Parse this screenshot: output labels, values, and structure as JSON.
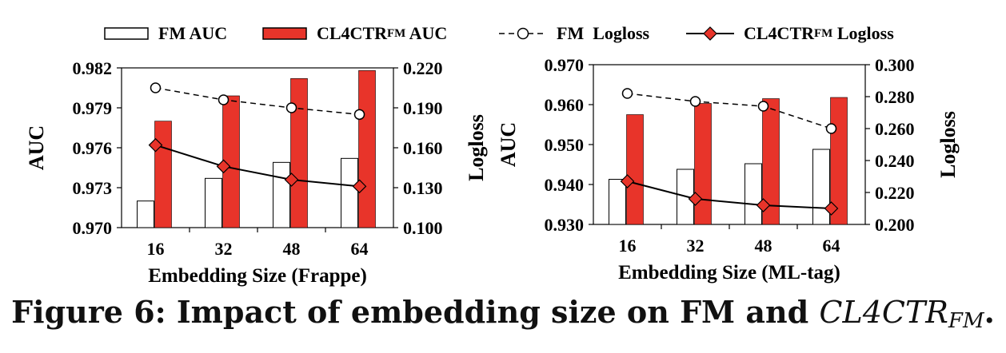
{
  "legend": {
    "fm_auc": "FM AUC",
    "cl_auc_main": "CL4CTR",
    "cl_auc_sub": "FM",
    "cl_auc_tail": " AUC",
    "fm_logloss": "FM  Logloss",
    "cl_logloss_main": "CL4CTR",
    "cl_logloss_sub": "FM",
    "cl_logloss_tail": " Logloss"
  },
  "caption": {
    "prefix": "Figure 6: Impact of embedding size on FM and ",
    "math_main": "CL4CTR",
    "math_sub": "FM",
    "suffix": "."
  },
  "colors": {
    "fm_bar": "#ffffff",
    "cl_bar": "#e8342a",
    "line": "#000000"
  },
  "chart_data": [
    {
      "type": "bar",
      "dataset": "Frappe",
      "categories": [
        "16",
        "32",
        "48",
        "64"
      ],
      "xlabel": "Embedding Size (Frappe)",
      "ylabel": "AUC",
      "y2label": "Logloss",
      "ylim": [
        0.97,
        0.982
      ],
      "yticks": [
        "0.970",
        "0.973",
        "0.976",
        "0.979",
        "0.982"
      ],
      "y2lim": [
        0.1,
        0.22
      ],
      "y2ticks": [
        "0.100",
        "0.130",
        "0.160",
        "0.190",
        "0.220"
      ],
      "series": [
        {
          "name": "FM AUC",
          "kind": "bar",
          "axis": "left",
          "values": [
            0.972,
            0.9737,
            0.9749,
            0.9752
          ]
        },
        {
          "name": "CL4CTR_FM AUC",
          "kind": "bar",
          "axis": "left",
          "values": [
            0.978,
            0.9799,
            0.9812,
            0.9818
          ]
        },
        {
          "name": "FM Logloss",
          "kind": "line",
          "axis": "right",
          "values": [
            0.205,
            0.196,
            0.19,
            0.185
          ]
        },
        {
          "name": "CL4CTR_FM Logloss",
          "kind": "line",
          "axis": "right",
          "values": [
            0.162,
            0.146,
            0.136,
            0.131
          ]
        }
      ]
    },
    {
      "type": "bar",
      "dataset": "ML-tag",
      "categories": [
        "16",
        "32",
        "48",
        "64"
      ],
      "xlabel": "Embedding Size (ML-tag)",
      "ylabel": "AUC",
      "y2label": "Logloss",
      "ylim": [
        0.93,
        0.97
      ],
      "yticks": [
        "0.930",
        "0.940",
        "0.950",
        "0.960",
        "0.970"
      ],
      "y2lim": [
        0.2,
        0.3
      ],
      "y2ticks": [
        "0.200",
        "0.220",
        "0.240",
        "0.260",
        "0.280",
        "0.300"
      ],
      "series": [
        {
          "name": "FM AUC",
          "kind": "bar",
          "axis": "left",
          "values": [
            0.9413,
            0.9438,
            0.9452,
            0.9488
          ]
        },
        {
          "name": "CL4CTR_FM AUC",
          "kind": "bar",
          "axis": "left",
          "values": [
            0.9575,
            0.9603,
            0.9615,
            0.9618
          ]
        },
        {
          "name": "FM Logloss",
          "kind": "line",
          "axis": "right",
          "values": [
            0.282,
            0.277,
            0.274,
            0.26
          ]
        },
        {
          "name": "CL4CTR_FM Logloss",
          "kind": "line",
          "axis": "right",
          "values": [
            0.227,
            0.216,
            0.212,
            0.21
          ]
        }
      ]
    }
  ]
}
